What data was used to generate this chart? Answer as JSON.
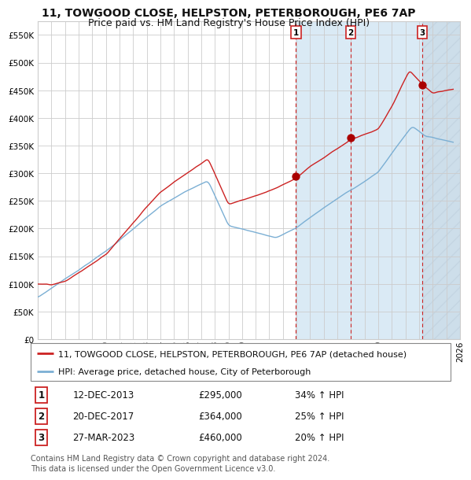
{
  "title": "11, TOWGOOD CLOSE, HELPSTON, PETERBOROUGH, PE6 7AP",
  "subtitle": "Price paid vs. HM Land Registry's House Price Index (HPI)",
  "ylim": [
    0,
    575000
  ],
  "yticks": [
    0,
    50000,
    100000,
    150000,
    200000,
    250000,
    300000,
    350000,
    400000,
    450000,
    500000,
    550000
  ],
  "xlim_start": 1995.0,
  "xlim_end": 2026.0,
  "hpi_color": "#7bafd4",
  "price_color": "#cc2222",
  "marker_color": "#aa0000",
  "grid_color": "#cccccc",
  "bg_color": "#ffffff",
  "shaded_color": "#daeaf5",
  "hatch_color": "#ccddee",
  "vline_color_red": "#cc2222",
  "sale_dates": [
    2013.96,
    2017.97,
    2023.24
  ],
  "sale_prices": [
    295000,
    364000,
    460000
  ],
  "sale_labels": [
    "1",
    "2",
    "3"
  ],
  "sale_date_strs": [
    "12-DEC-2013",
    "20-DEC-2017",
    "27-MAR-2023"
  ],
  "sale_price_strs": [
    "£295,000",
    "£364,000",
    "£460,000"
  ],
  "sale_hpi_strs": [
    "34% ↑ HPI",
    "25% ↑ HPI",
    "20% ↑ HPI"
  ],
  "legend_price_label": "11, TOWGOOD CLOSE, HELPSTON, PETERBOROUGH, PE6 7AP (detached house)",
  "legend_hpi_label": "HPI: Average price, detached house, City of Peterborough",
  "footnote": "Contains HM Land Registry data © Crown copyright and database right 2024.\nThis data is licensed under the Open Government Licence v3.0.",
  "title_fontsize": 10,
  "subtitle_fontsize": 9,
  "tick_fontsize": 7.5,
  "legend_fontsize": 8,
  "table_fontsize": 8.5,
  "footnote_fontsize": 7
}
